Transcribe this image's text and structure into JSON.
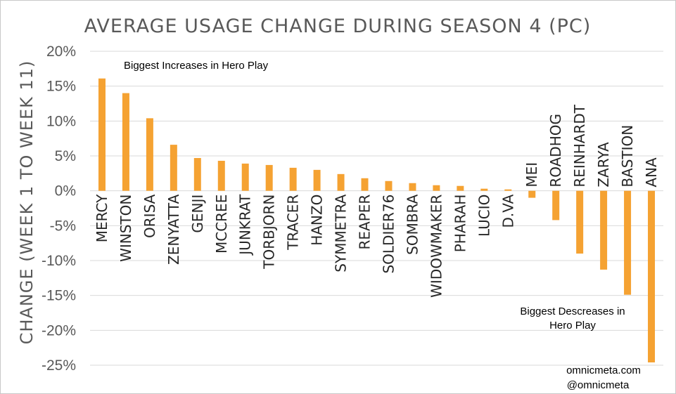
{
  "chart_data": {
    "type": "bar",
    "title": "AVERAGE USAGE CHANGE DURING SEASON 4 (PC)",
    "ylabel": "CHANGE (WEEK 1 TO WEEK 11)",
    "xlabel": "",
    "ylim": [
      -25,
      20
    ],
    "yticks": [
      20,
      15,
      10,
      5,
      0,
      -5,
      -10,
      -15,
      -20,
      -25
    ],
    "ytick_labels": [
      "20%",
      "15%",
      "10%",
      "5%",
      "0%",
      "-5%",
      "-10%",
      "-15%",
      "-20%",
      "-25%"
    ],
    "grid": true,
    "bar_color": "#f5a232",
    "categories": [
      "MERCY",
      "WINSTON",
      "ORISA",
      "ZENYATTA",
      "GENJI",
      "MCCREE",
      "JUNKRAT",
      "TORBJORN",
      "TRACER",
      "HANZO",
      "SYMMETRA",
      "REAPER",
      "SOLDIER76",
      "SOMBRA",
      "WIDOWMAKER",
      "PHARAH",
      "LUCIO",
      "D.VA",
      "MEI",
      "ROADHOG",
      "REINHARDT",
      "ZARYA",
      "BASTION",
      "ANA"
    ],
    "values": [
      16.1,
      14.0,
      10.4,
      6.6,
      4.7,
      4.3,
      3.9,
      3.7,
      3.3,
      3.0,
      2.4,
      1.8,
      1.4,
      1.1,
      0.8,
      0.7,
      0.3,
      0.2,
      -1.0,
      -4.2,
      -9.0,
      -11.3,
      -14.9,
      -24.6
    ],
    "annotations": {
      "increase_note": "Biggest Increases in Hero Play",
      "decrease_note_line1": "Biggest Descreases in",
      "decrease_note_line2": "Hero Play"
    },
    "credit_line1": "omnicmeta.com",
    "credit_line2": "@omnicmeta"
  }
}
